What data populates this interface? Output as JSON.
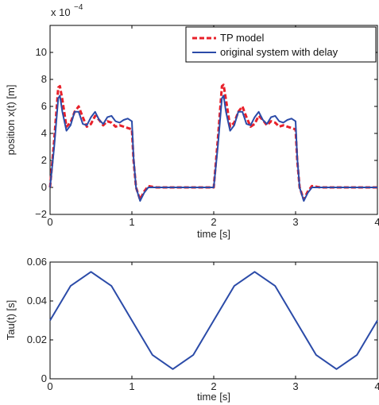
{
  "colors": {
    "tp_model": "#e8202a",
    "original": "#2b4ba8",
    "axes": "#000000"
  },
  "chart_data": [
    {
      "type": "line",
      "title": "",
      "xlabel": "time [s]",
      "ylabel": "position x(t) [m]",
      "scale_prefix": "x 10",
      "scale_exponent": "−4",
      "xlim": [
        0,
        4
      ],
      "ylim": [
        -2,
        12
      ],
      "xticks": [
        0,
        1,
        2,
        3,
        4
      ],
      "yticks": [
        -2,
        0,
        2,
        4,
        6,
        8,
        10
      ],
      "xtick_labels": [
        "0",
        "1",
        "2",
        "3",
        "4"
      ],
      "ytick_labels": [
        "−2",
        "0",
        "2",
        "4",
        "6",
        "8",
        "10"
      ],
      "legend": {
        "placement": "top-right",
        "entries": [
          "TP model",
          "original system with delay"
        ]
      },
      "series": [
        {
          "name": "TP model",
          "style": "dashed",
          "x": [
            0,
            0.05,
            0.1,
            0.12,
            0.15,
            0.2,
            0.25,
            0.3,
            0.35,
            0.4,
            0.45,
            0.5,
            0.55,
            0.6,
            0.65,
            0.7,
            0.75,
            0.8,
            0.85,
            0.9,
            0.95,
            1.0,
            1.02,
            1.05,
            1.1,
            1.15,
            1.2,
            1.3,
            1.5,
            2.0,
            2.05,
            2.1,
            2.12,
            2.15,
            2.2,
            2.25,
            2.3,
            2.35,
            2.4,
            2.45,
            2.5,
            2.55,
            2.6,
            2.65,
            2.7,
            2.75,
            2.8,
            2.85,
            2.9,
            2.95,
            3.0,
            3.02,
            3.05,
            3.1,
            3.15,
            3.2,
            3.3,
            3.5,
            4.0
          ],
          "y": [
            0,
            3.5,
            7.4,
            7.5,
            6.5,
            4.5,
            4.8,
            5.6,
            6.0,
            5.2,
            4.5,
            4.7,
            5.3,
            5.0,
            4.6,
            4.9,
            4.8,
            4.5,
            4.6,
            4.5,
            4.4,
            4.3,
            2.0,
            0.0,
            -0.9,
            -0.3,
            0.1,
            0.0,
            0.0,
            0.0,
            3.5,
            7.5,
            7.6,
            6.5,
            4.5,
            4.8,
            5.6,
            6.0,
            5.2,
            4.5,
            4.7,
            5.3,
            5.0,
            4.6,
            4.9,
            4.8,
            4.5,
            4.6,
            4.5,
            4.4,
            4.3,
            2.0,
            0.0,
            -0.9,
            -0.3,
            0.1,
            0.0,
            0.0,
            0.0
          ]
        },
        {
          "name": "original system with delay",
          "style": "solid",
          "x": [
            0,
            0.05,
            0.1,
            0.12,
            0.15,
            0.2,
            0.25,
            0.3,
            0.35,
            0.4,
            0.45,
            0.5,
            0.55,
            0.6,
            0.65,
            0.7,
            0.75,
            0.8,
            0.85,
            0.9,
            0.95,
            1.0,
            1.02,
            1.05,
            1.1,
            1.15,
            1.2,
            1.3,
            1.5,
            2.0,
            2.05,
            2.1,
            2.12,
            2.15,
            2.2,
            2.25,
            2.3,
            2.35,
            2.4,
            2.45,
            2.5,
            2.55,
            2.6,
            2.65,
            2.7,
            2.75,
            2.8,
            2.85,
            2.9,
            2.95,
            3.0,
            3.02,
            3.05,
            3.1,
            3.15,
            3.2,
            3.3,
            3.5,
            4.0
          ],
          "y": [
            0,
            3.0,
            6.6,
            6.8,
            5.6,
            4.2,
            4.6,
            5.6,
            5.6,
            4.7,
            4.6,
            5.2,
            5.6,
            5.0,
            4.7,
            5.2,
            5.3,
            4.9,
            4.8,
            5.0,
            5.1,
            4.9,
            2.2,
            0.0,
            -1.0,
            -0.4,
            0.0,
            0.0,
            0.0,
            0.0,
            3.0,
            6.6,
            6.8,
            5.6,
            4.2,
            4.6,
            5.6,
            5.6,
            4.7,
            4.6,
            5.2,
            5.6,
            5.0,
            4.7,
            5.2,
            5.3,
            4.9,
            4.8,
            5.0,
            5.1,
            4.9,
            2.2,
            0.0,
            -1.0,
            -0.4,
            0.0,
            0.0,
            0.0,
            0.0
          ]
        }
      ]
    },
    {
      "type": "line",
      "title": "",
      "xlabel": "time [s]",
      "ylabel": "Tau(t) [s]",
      "xlim": [
        0,
        4
      ],
      "ylim": [
        0,
        0.06
      ],
      "xticks": [
        0,
        1,
        2,
        3,
        4
      ],
      "yticks": [
        0,
        0.02,
        0.04,
        0.06
      ],
      "xtick_labels": [
        "0",
        "1",
        "2",
        "3",
        "4"
      ],
      "ytick_labels": [
        "0",
        "0.02",
        "0.04",
        "0.06"
      ],
      "series": [
        {
          "style": "solid",
          "x": [
            0,
            0.25,
            0.5,
            0.75,
            1.0,
            1.25,
            1.5,
            1.75,
            2.0,
            2.25,
            2.5,
            2.75,
            3.0,
            3.25,
            3.5,
            3.75,
            4.0
          ],
          "y": [
            0.03,
            0.0477,
            0.055,
            0.0477,
            0.03,
            0.0123,
            0.005,
            0.0123,
            0.03,
            0.0477,
            0.055,
            0.0477,
            0.03,
            0.0123,
            0.005,
            0.0123,
            0.03
          ]
        }
      ]
    }
  ]
}
